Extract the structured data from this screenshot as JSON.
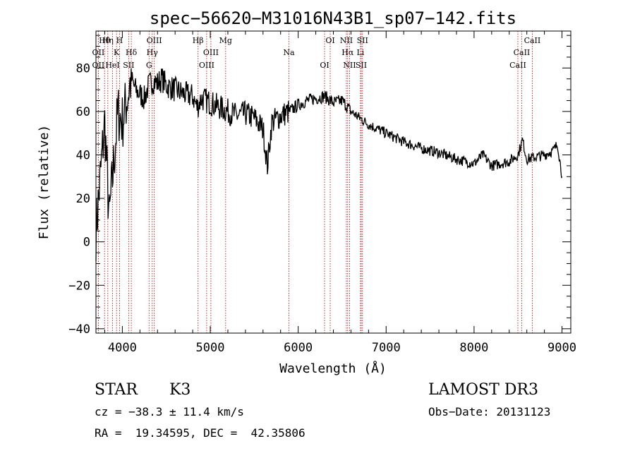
{
  "chart_data": {
    "type": "line",
    "title": "spec−56620−M31016N43B1_sp07−142.fits",
    "xlabel": "Wavelength (Å)",
    "ylabel": "Flux (relative)",
    "xlim": [
      3700,
      9100
    ],
    "ylim": [
      -42,
      97
    ],
    "xticks": [
      4000,
      5000,
      6000,
      7000,
      8000,
      9000
    ],
    "yticks": [
      -40,
      -20,
      0,
      20,
      40,
      60,
      80
    ],
    "grid": false,
    "series": [
      {
        "name": "flux",
        "x": [
          3700,
          3750,
          3800,
          3850,
          3900,
          3950,
          4000,
          4050,
          4100,
          4150,
          4200,
          4250,
          4300,
          4350,
          4400,
          4450,
          4500,
          4600,
          4700,
          4800,
          4850,
          4900,
          5000,
          5100,
          5200,
          5300,
          5400,
          5500,
          5600,
          5650,
          5700,
          5800,
          5900,
          6000,
          6100,
          6200,
          6300,
          6400,
          6500,
          6600,
          6700,
          6800,
          7000,
          7200,
          7400,
          7600,
          7800,
          8000,
          8100,
          8200,
          8300,
          8400,
          8500,
          8550,
          8600,
          8700,
          8800,
          8900,
          8950,
          9000
        ],
        "y": [
          5,
          30,
          55,
          10,
          35,
          60,
          55,
          65,
          75,
          70,
          68,
          66,
          72,
          74,
          73,
          75,
          72,
          70,
          68,
          67,
          62,
          66,
          64,
          62,
          60,
          58,
          59,
          57,
          52,
          35,
          55,
          58,
          60,
          63,
          65,
          66,
          67,
          64,
          65,
          60,
          57,
          54,
          50,
          46,
          43,
          41,
          38,
          36,
          40,
          35,
          36,
          37,
          40,
          47,
          38,
          39,
          40,
          42,
          45,
          30
        ]
      }
    ],
    "lines": [
      {
        "name": "Hθ",
        "wave": 3798
      },
      {
        "name": "OII",
        "wave": 3727
      },
      {
        "name": "OII",
        "wave": 3727
      },
      {
        "name": "Hη",
        "wave": 3835
      },
      {
        "name": "K",
        "wave": 3934
      },
      {
        "name": "HeI",
        "wave": 3889
      },
      {
        "name": "H",
        "wave": 3968
      },
      {
        "name": "Hδ",
        "wave": 4102
      },
      {
        "name": "SII",
        "wave": 4072
      },
      {
        "name": "OIII",
        "wave": 4363
      },
      {
        "name": "Hγ",
        "wave": 4340
      },
      {
        "name": "G",
        "wave": 4304
      },
      {
        "name": "Hβ",
        "wave": 4861
      },
      {
        "name": "OIII",
        "wave": 5007
      },
      {
        "name": "OIII",
        "wave": 4959
      },
      {
        "name": "Mg",
        "wave": 5175
      },
      {
        "name": "Na",
        "wave": 5894
      },
      {
        "name": "OI",
        "wave": 6300
      },
      {
        "name": "OI",
        "wave": 6364
      },
      {
        "name": "Hα",
        "wave": 6563
      },
      {
        "name": "SII",
        "wave": 6717
      },
      {
        "name": "NII",
        "wave": 6548
      },
      {
        "name": "Li",
        "wave": 6708
      },
      {
        "name": "NII",
        "wave": 6584
      },
      {
        "name": "SII",
        "wave": 6731
      },
      {
        "name": "CaII",
        "wave": 8542
      },
      {
        "name": "CaII",
        "wave": 8498
      },
      {
        "name": "CaII",
        "wave": 8662
      }
    ]
  },
  "info": {
    "class_label": "STAR",
    "subclass": "K3",
    "survey": "LAMOST DR3",
    "cz": "cz = −38.3 ± 11.4 km/s",
    "obs_date": "Obs−Date: 20131123",
    "radec": "RA =  19.34595, DEC =  42.35806"
  }
}
